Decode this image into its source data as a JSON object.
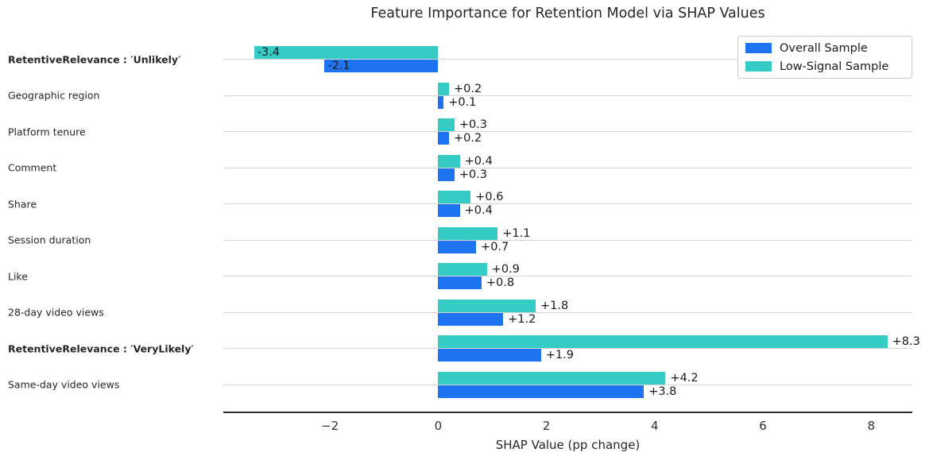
{
  "chart_data": {
    "type": "bar",
    "orientation": "horizontal",
    "title": "Feature Importance for Retention Model via SHAP Values",
    "xlabel": "SHAP Value (pp change)",
    "categories": [
      {
        "label": "RetentiveRelevance : ′Unlikely′",
        "bold": true
      },
      {
        "label": "Geographic region",
        "bold": false
      },
      {
        "label": "Platform tenure",
        "bold": false
      },
      {
        "label": "Comment",
        "bold": false
      },
      {
        "label": "Share",
        "bold": false
      },
      {
        "label": "Session duration",
        "bold": false
      },
      {
        "label": "Like",
        "bold": false
      },
      {
        "label": "28-day video views",
        "bold": false
      },
      {
        "label": "RetentiveRelevance : ′VeryLikely′",
        "bold": true
      },
      {
        "label": "Same-day video views",
        "bold": false
      }
    ],
    "series": [
      {
        "name": "Overall Sample",
        "color": "#1e73f0",
        "values": [
          -2.1,
          0.1,
          0.2,
          0.3,
          0.4,
          0.7,
          0.8,
          1.2,
          1.9,
          3.8
        ],
        "value_labels": [
          "-2.1",
          "+0.1",
          "+0.2",
          "+0.3",
          "+0.4",
          "+0.7",
          "+0.8",
          "+1.2",
          "+1.9",
          "+3.8"
        ]
      },
      {
        "name": "Low-Signal Sample",
        "color": "#35ccc5",
        "values": [
          -3.4,
          0.2,
          0.3,
          0.4,
          0.6,
          1.1,
          0.9,
          1.8,
          8.3,
          4.2
        ],
        "value_labels": [
          "-3.4",
          "+0.2",
          "+0.3",
          "+0.4",
          "+0.6",
          "+1.1",
          "+0.9",
          "+1.8",
          "+8.3",
          "+4.2"
        ]
      }
    ],
    "x_ticks": [
      {
        "value": -2,
        "label": "−2"
      },
      {
        "value": 0,
        "label": "0"
      },
      {
        "value": 2,
        "label": "2"
      },
      {
        "value": 4,
        "label": "4"
      },
      {
        "value": 6,
        "label": "6"
      },
      {
        "value": 8,
        "label": "8"
      }
    ],
    "xlim": [
      -3.97,
      8.76
    ],
    "grid": true,
    "legend_position": "upper right",
    "grid_color": "#d5d5d5",
    "spine_color": "#2b2b2b",
    "text_color": "#262626"
  }
}
